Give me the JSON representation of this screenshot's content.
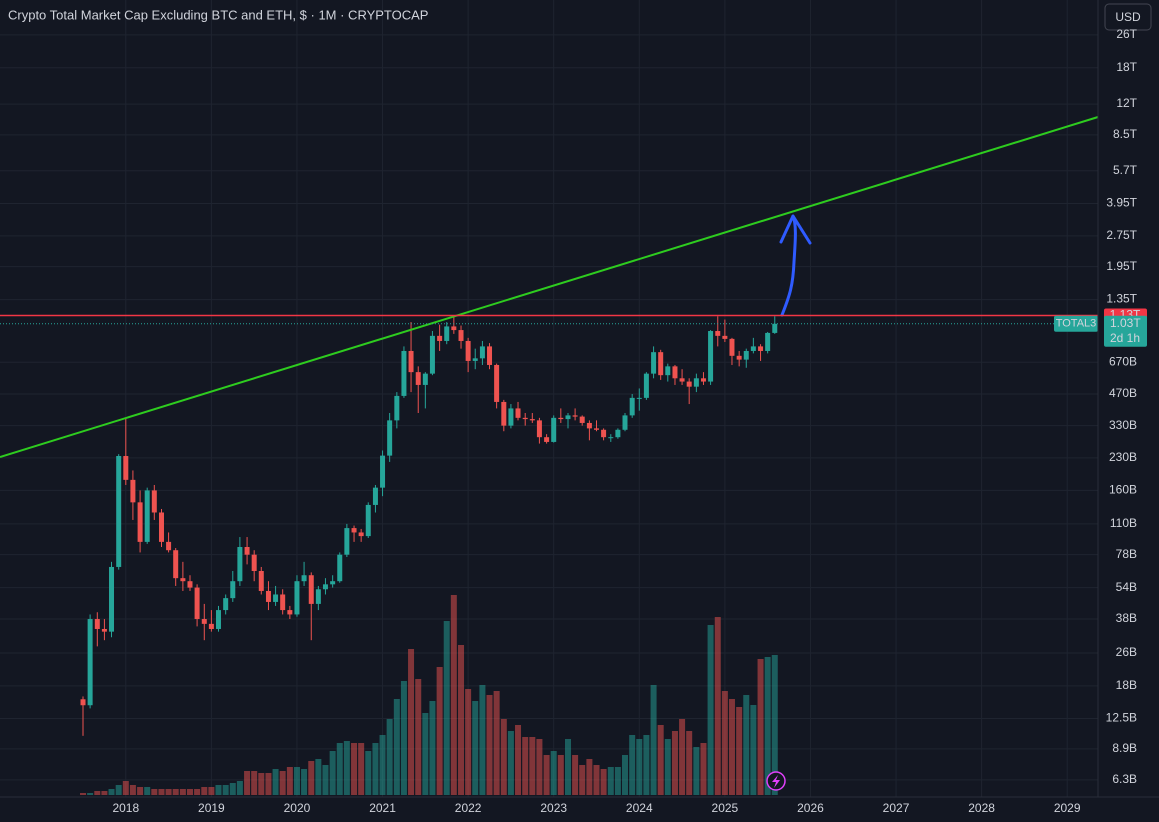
{
  "ui": {
    "currency_button": "USD"
  },
  "chart_data": {
    "type": "candlestick",
    "title": "Crypto Total Market Cap Excluding BTC and ETH, $ · 1M · CRYPTOCAP",
    "x": [
      2017.5,
      2017.583,
      2017.667,
      2017.75,
      2017.833,
      2017.917,
      2018.0,
      2018.083,
      2018.167,
      2018.25,
      2018.333,
      2018.417,
      2018.5,
      2018.583,
      2018.667,
      2018.75,
      2018.833,
      2018.917,
      2019.0,
      2019.083,
      2019.167,
      2019.25,
      2019.333,
      2019.417,
      2019.5,
      2019.583,
      2019.667,
      2019.75,
      2019.833,
      2019.917,
      2020.0,
      2020.083,
      2020.167,
      2020.25,
      2020.333,
      2020.417,
      2020.5,
      2020.583,
      2020.667,
      2020.75,
      2020.833,
      2020.917,
      2021.0,
      2021.083,
      2021.167,
      2021.25,
      2021.333,
      2021.417,
      2021.5,
      2021.583,
      2021.667,
      2021.75,
      2021.833,
      2021.917,
      2022.0,
      2022.083,
      2022.167,
      2022.25,
      2022.333,
      2022.417,
      2022.5,
      2022.583,
      2022.667,
      2022.75,
      2022.833,
      2022.917,
      2023.0,
      2023.083,
      2023.167,
      2023.25,
      2023.333,
      2023.417,
      2023.5,
      2023.583,
      2023.667,
      2023.75,
      2023.833,
      2023.917,
      2024.0,
      2024.083,
      2024.167,
      2024.25,
      2024.333,
      2024.417,
      2024.5,
      2024.583,
      2024.667,
      2024.75,
      2024.833,
      2024.917,
      2025.0,
      2025.083,
      2025.167,
      2025.25,
      2025.333,
      2025.417,
      2025.5,
      2025.583
    ],
    "candles": [
      [
        15.5,
        16,
        10.3,
        14.5
      ],
      [
        14.5,
        40,
        14,
        38
      ],
      [
        38,
        41,
        28,
        34
      ],
      [
        34,
        38,
        30,
        33
      ],
      [
        33,
        72,
        31,
        68
      ],
      [
        68,
        240,
        66,
        235
      ],
      [
        235,
        360,
        170,
        180
      ],
      [
        180,
        200,
        115,
        140
      ],
      [
        140,
        160,
        80,
        90
      ],
      [
        90,
        165,
        88,
        160
      ],
      [
        160,
        170,
        115,
        125
      ],
      [
        125,
        130,
        85,
        90
      ],
      [
        90,
        100,
        80,
        82
      ],
      [
        82,
        84,
        55,
        60
      ],
      [
        60,
        72,
        52,
        58
      ],
      [
        58,
        62,
        52,
        54
      ],
      [
        54,
        56,
        35,
        38
      ],
      [
        38,
        45,
        30,
        36
      ],
      [
        36,
        42,
        33,
        34
      ],
      [
        34,
        44,
        33,
        42
      ],
      [
        42,
        50,
        40,
        48
      ],
      [
        48,
        65,
        46,
        58
      ],
      [
        58,
        95,
        55,
        85
      ],
      [
        85,
        95,
        70,
        78
      ],
      [
        78,
        82,
        58,
        65
      ],
      [
        65,
        68,
        50,
        52
      ],
      [
        52,
        58,
        42,
        46
      ],
      [
        46,
        55,
        44,
        50
      ],
      [
        50,
        53,
        40,
        42
      ],
      [
        42,
        44,
        38,
        40
      ],
      [
        40,
        62,
        39,
        58
      ],
      [
        58,
        72,
        55,
        62
      ],
      [
        62,
        64,
        30,
        45
      ],
      [
        45,
        55,
        42,
        53
      ],
      [
        53,
        60,
        50,
        56
      ],
      [
        56,
        62,
        54,
        58
      ],
      [
        58,
        80,
        57,
        78
      ],
      [
        78,
        110,
        76,
        105
      ],
      [
        105,
        108,
        90,
        100
      ],
      [
        100,
        104,
        90,
        96
      ],
      [
        96,
        140,
        94,
        136
      ],
      [
        136,
        170,
        125,
        165
      ],
      [
        165,
        250,
        150,
        236
      ],
      [
        236,
        380,
        220,
        350
      ],
      [
        350,
        480,
        320,
        460
      ],
      [
        460,
        800,
        450,
        760
      ],
      [
        760,
        1050,
        480,
        600
      ],
      [
        600,
        640,
        380,
        520
      ],
      [
        520,
        600,
        400,
        590
      ],
      [
        590,
        950,
        580,
        900
      ],
      [
        900,
        1020,
        760,
        850
      ],
      [
        850,
        1050,
        820,
        1000
      ],
      [
        1000,
        1130,
        920,
        960
      ],
      [
        960,
        1010,
        780,
        850
      ],
      [
        850,
        880,
        600,
        680
      ],
      [
        680,
        780,
        620,
        700
      ],
      [
        700,
        850,
        650,
        800
      ],
      [
        800,
        830,
        620,
        650
      ],
      [
        650,
        660,
        400,
        430
      ],
      [
        430,
        440,
        310,
        330
      ],
      [
        330,
        420,
        320,
        400
      ],
      [
        400,
        430,
        350,
        360
      ],
      [
        360,
        380,
        330,
        355
      ],
      [
        355,
        380,
        340,
        350
      ],
      [
        350,
        360,
        270,
        290
      ],
      [
        290,
        300,
        270,
        275
      ],
      [
        275,
        370,
        273,
        360
      ],
      [
        360,
        400,
        340,
        355
      ],
      [
        355,
        380,
        320,
        370
      ],
      [
        370,
        400,
        350,
        365
      ],
      [
        365,
        370,
        330,
        340
      ],
      [
        340,
        350,
        280,
        320
      ],
      [
        320,
        350,
        310,
        315
      ],
      [
        315,
        320,
        280,
        290
      ],
      [
        290,
        300,
        275,
        290
      ],
      [
        290,
        320,
        285,
        315
      ],
      [
        315,
        380,
        310,
        370
      ],
      [
        370,
        470,
        360,
        450
      ],
      [
        450,
        500,
        390,
        450
      ],
      [
        450,
        600,
        440,
        590
      ],
      [
        590,
        800,
        560,
        750
      ],
      [
        750,
        770,
        550,
        580
      ],
      [
        580,
        660,
        540,
        640
      ],
      [
        640,
        650,
        520,
        560
      ],
      [
        560,
        620,
        520,
        540
      ],
      [
        540,
        560,
        420,
        510
      ],
      [
        510,
        590,
        480,
        560
      ],
      [
        560,
        600,
        520,
        540
      ],
      [
        540,
        960,
        520,
        950
      ],
      [
        950,
        1120,
        800,
        900
      ],
      [
        900,
        1080,
        840,
        870
      ],
      [
        870,
        880,
        650,
        720
      ],
      [
        720,
        760,
        640,
        690
      ],
      [
        690,
        780,
        630,
        760
      ],
      [
        760,
        880,
        740,
        800
      ],
      [
        800,
        820,
        680,
        760
      ],
      [
        760,
        940,
        740,
        930
      ],
      [
        930,
        1120,
        920,
        1030
      ]
    ],
    "volume": [
      1,
      1,
      2,
      2,
      3,
      5,
      7,
      5,
      4,
      4,
      3,
      3,
      3,
      3,
      3,
      3,
      3,
      4,
      4,
      5,
      5,
      6,
      7,
      12,
      12,
      11,
      11,
      13,
      12,
      14,
      14,
      13,
      17,
      18,
      15,
      22,
      26,
      27,
      26,
      26,
      22,
      26,
      30,
      38,
      48,
      57,
      73,
      58,
      41,
      47,
      64,
      87,
      100,
      75,
      53,
      47,
      55,
      50,
      52,
      38,
      32,
      35,
      29,
      29,
      28,
      20,
      22,
      20,
      28,
      20,
      15,
      18,
      15,
      13,
      14,
      14,
      20,
      30,
      28,
      30,
      55,
      35,
      28,
      32,
      38,
      32,
      24,
      26,
      85,
      89,
      52,
      48,
      44,
      50,
      45,
      68,
      69,
      70
    ],
    "vlim": [
      0,
      100
    ],
    "xlim": [
      2016.53,
      2029.36
    ],
    "xticks": [
      2018,
      2019,
      2020,
      2021,
      2022,
      2023,
      2024,
      2025,
      2026,
      2027,
      2028,
      2029
    ],
    "ylim": [
      5.2,
      38400
    ],
    "log_scale": true,
    "grid": true,
    "up_color": "#26a69a",
    "down_color": "#ef5350",
    "yticks": [
      {
        "value": 26000,
        "label": "26T"
      },
      {
        "value": 18000,
        "label": "18T"
      },
      {
        "value": 12000,
        "label": "12T"
      },
      {
        "value": 8500,
        "label": "8.5T"
      },
      {
        "value": 5700,
        "label": "5.7T"
      },
      {
        "value": 3950,
        "label": "3.95T"
      },
      {
        "value": 2750,
        "label": "2.75T"
      },
      {
        "value": 1950,
        "label": "1.95T"
      },
      {
        "value": 1350,
        "label": "1.35T"
      },
      {
        "value": 670,
        "label": "670B"
      },
      {
        "value": 470,
        "label": "470B"
      },
      {
        "value": 330,
        "label": "330B"
      },
      {
        "value": 230,
        "label": "230B"
      },
      {
        "value": 160,
        "label": "160B"
      },
      {
        "value": 110,
        "label": "110B"
      },
      {
        "value": 78,
        "label": "78B"
      },
      {
        "value": 54,
        "label": "54B"
      },
      {
        "value": 38,
        "label": "38B"
      },
      {
        "value": 26,
        "label": "26B"
      },
      {
        "value": 18,
        "label": "18B"
      },
      {
        "value": 12.5,
        "label": "12.5B"
      },
      {
        "value": 8.9,
        "label": "8.9B"
      },
      {
        "value": 6.3,
        "label": "6.3B"
      }
    ],
    "horizontal_line": {
      "value": 1130,
      "label": "1.13T",
      "color": "#f23645"
    },
    "last_price": {
      "value": 1030,
      "label": "1.03T",
      "symbol": "TOTAL3",
      "countdown": "2d 1h",
      "color": "#26a69a"
    }
  }
}
